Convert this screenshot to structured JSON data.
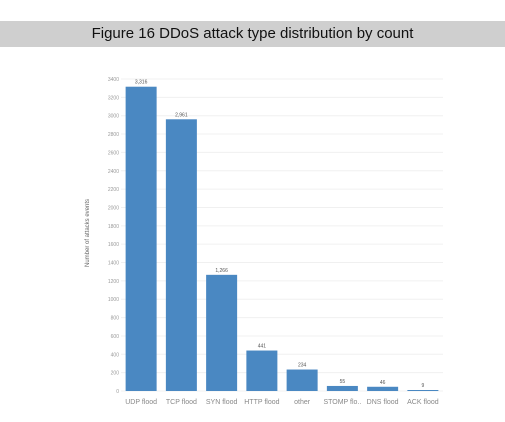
{
  "figure": {
    "title": "Figure 16 DDoS attack type distribution by count"
  },
  "chart_data": {
    "type": "bar",
    "title": "Figure 16 DDoS attack type distribution by count",
    "xlabel": "",
    "ylabel": "Number of attacks events",
    "categories": [
      "UDP flood",
      "TCP flood",
      "SYN flood",
      "HTTP flood",
      "other",
      "STOMP flo..",
      "DNS flood",
      "ACK flood"
    ],
    "values": [
      3316,
      2961,
      1266,
      441,
      234,
      55,
      46,
      9
    ],
    "value_labels": [
      "3,316",
      "2,961",
      "1,266",
      "441",
      "234",
      "55",
      "46",
      "9"
    ],
    "yticks": [
      0,
      200,
      400,
      600,
      800,
      1000,
      1200,
      1400,
      1600,
      1800,
      2000,
      2200,
      2400,
      2600,
      2800,
      3000,
      3200,
      3400
    ],
    "ylim": [
      0,
      3400
    ],
    "grid": true,
    "bar_color": "#4a88c2",
    "grid_color": "#f0f0f0"
  }
}
